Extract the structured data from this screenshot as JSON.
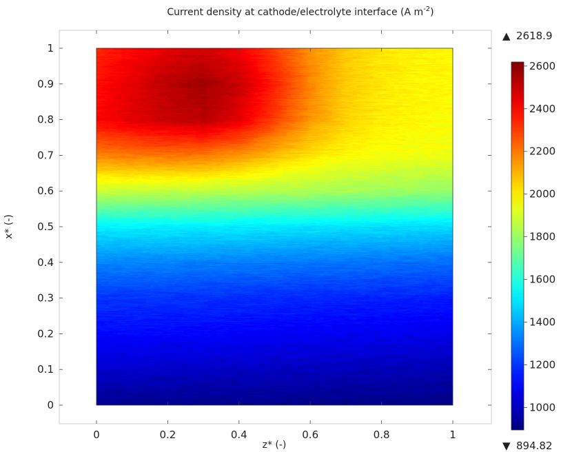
{
  "chart_data": {
    "type": "heatmap",
    "title": "Current density at cathode/electrolyte interface (A m",
    "title_sup": "-2",
    "title_end": ")",
    "xlabel": "z* (-)",
    "ylabel": "x* (-)",
    "xlim": [
      -0.1,
      1.1
    ],
    "ylim": [
      -0.05,
      1.05
    ],
    "xticks": [
      0,
      0.2,
      0.4,
      0.6,
      0.8,
      1
    ],
    "xtick_labels": [
      "0",
      "0.2",
      "0.4",
      "0.6",
      "0.8",
      "1"
    ],
    "yticks": [
      0,
      0.1,
      0.2,
      0.3,
      0.4,
      0.5,
      0.6,
      0.7,
      0.8,
      0.9,
      1
    ],
    "ytick_labels": [
      "0",
      "0.1",
      "0.2",
      "0.3",
      "0.4",
      "0.5",
      "0.6",
      "0.7",
      "0.8",
      "0.9",
      "1"
    ],
    "colorbar": {
      "colormap": "jet",
      "min": 894.82,
      "max": 2618.9,
      "max_label": "2618.9",
      "min_label": "894.82",
      "ticks": [
        1000,
        1200,
        1400,
        1600,
        1800,
        2000,
        2200,
        2400,
        2600
      ],
      "tick_labels": [
        "1000",
        "1200",
        "1400",
        "1600",
        "1800",
        "2000",
        "2200",
        "2400",
        "2600"
      ]
    },
    "field": {
      "z": [
        0,
        0.1,
        0.2,
        0.3,
        0.4,
        0.5,
        0.6,
        0.7,
        0.8,
        0.9,
        1
      ],
      "x": [
        0,
        0.1,
        0.2,
        0.3,
        0.4,
        0.5,
        0.6,
        0.7,
        0.8,
        0.9,
        1
      ],
      "values": [
        [
          920,
          920,
          915,
          915,
          915,
          915,
          910,
          910,
          910,
          905,
          900
        ],
        [
          1030,
          1025,
          1020,
          1015,
          1010,
          1005,
          1000,
          995,
          990,
          985,
          980
        ],
        [
          1120,
          1120,
          1115,
          1110,
          1105,
          1100,
          1095,
          1090,
          1085,
          1080,
          1075
        ],
        [
          1200,
          1200,
          1195,
          1190,
          1185,
          1180,
          1175,
          1170,
          1165,
          1160,
          1155
        ],
        [
          1340,
          1340,
          1335,
          1330,
          1325,
          1320,
          1315,
          1310,
          1305,
          1300,
          1295
        ],
        [
          1520,
          1520,
          1520,
          1515,
          1510,
          1505,
          1500,
          1495,
          1490,
          1485,
          1480
        ],
        [
          1880,
          1880,
          1870,
          1860,
          1850,
          1840,
          1830,
          1820,
          1810,
          1800,
          1790
        ],
        [
          2180,
          2200,
          2210,
          2200,
          2150,
          2080,
          2020,
          1980,
          1960,
          1950,
          1940
        ],
        [
          2400,
          2450,
          2500,
          2520,
          2450,
          2300,
          2150,
          2050,
          2000,
          1980,
          1970
        ],
        [
          2380,
          2450,
          2520,
          2560,
          2500,
          2350,
          2180,
          2060,
          2010,
          1990,
          1980
        ],
        [
          2340,
          2400,
          2450,
          2470,
          2420,
          2300,
          2160,
          2060,
          2010,
          1990,
          1980
        ]
      ]
    }
  }
}
